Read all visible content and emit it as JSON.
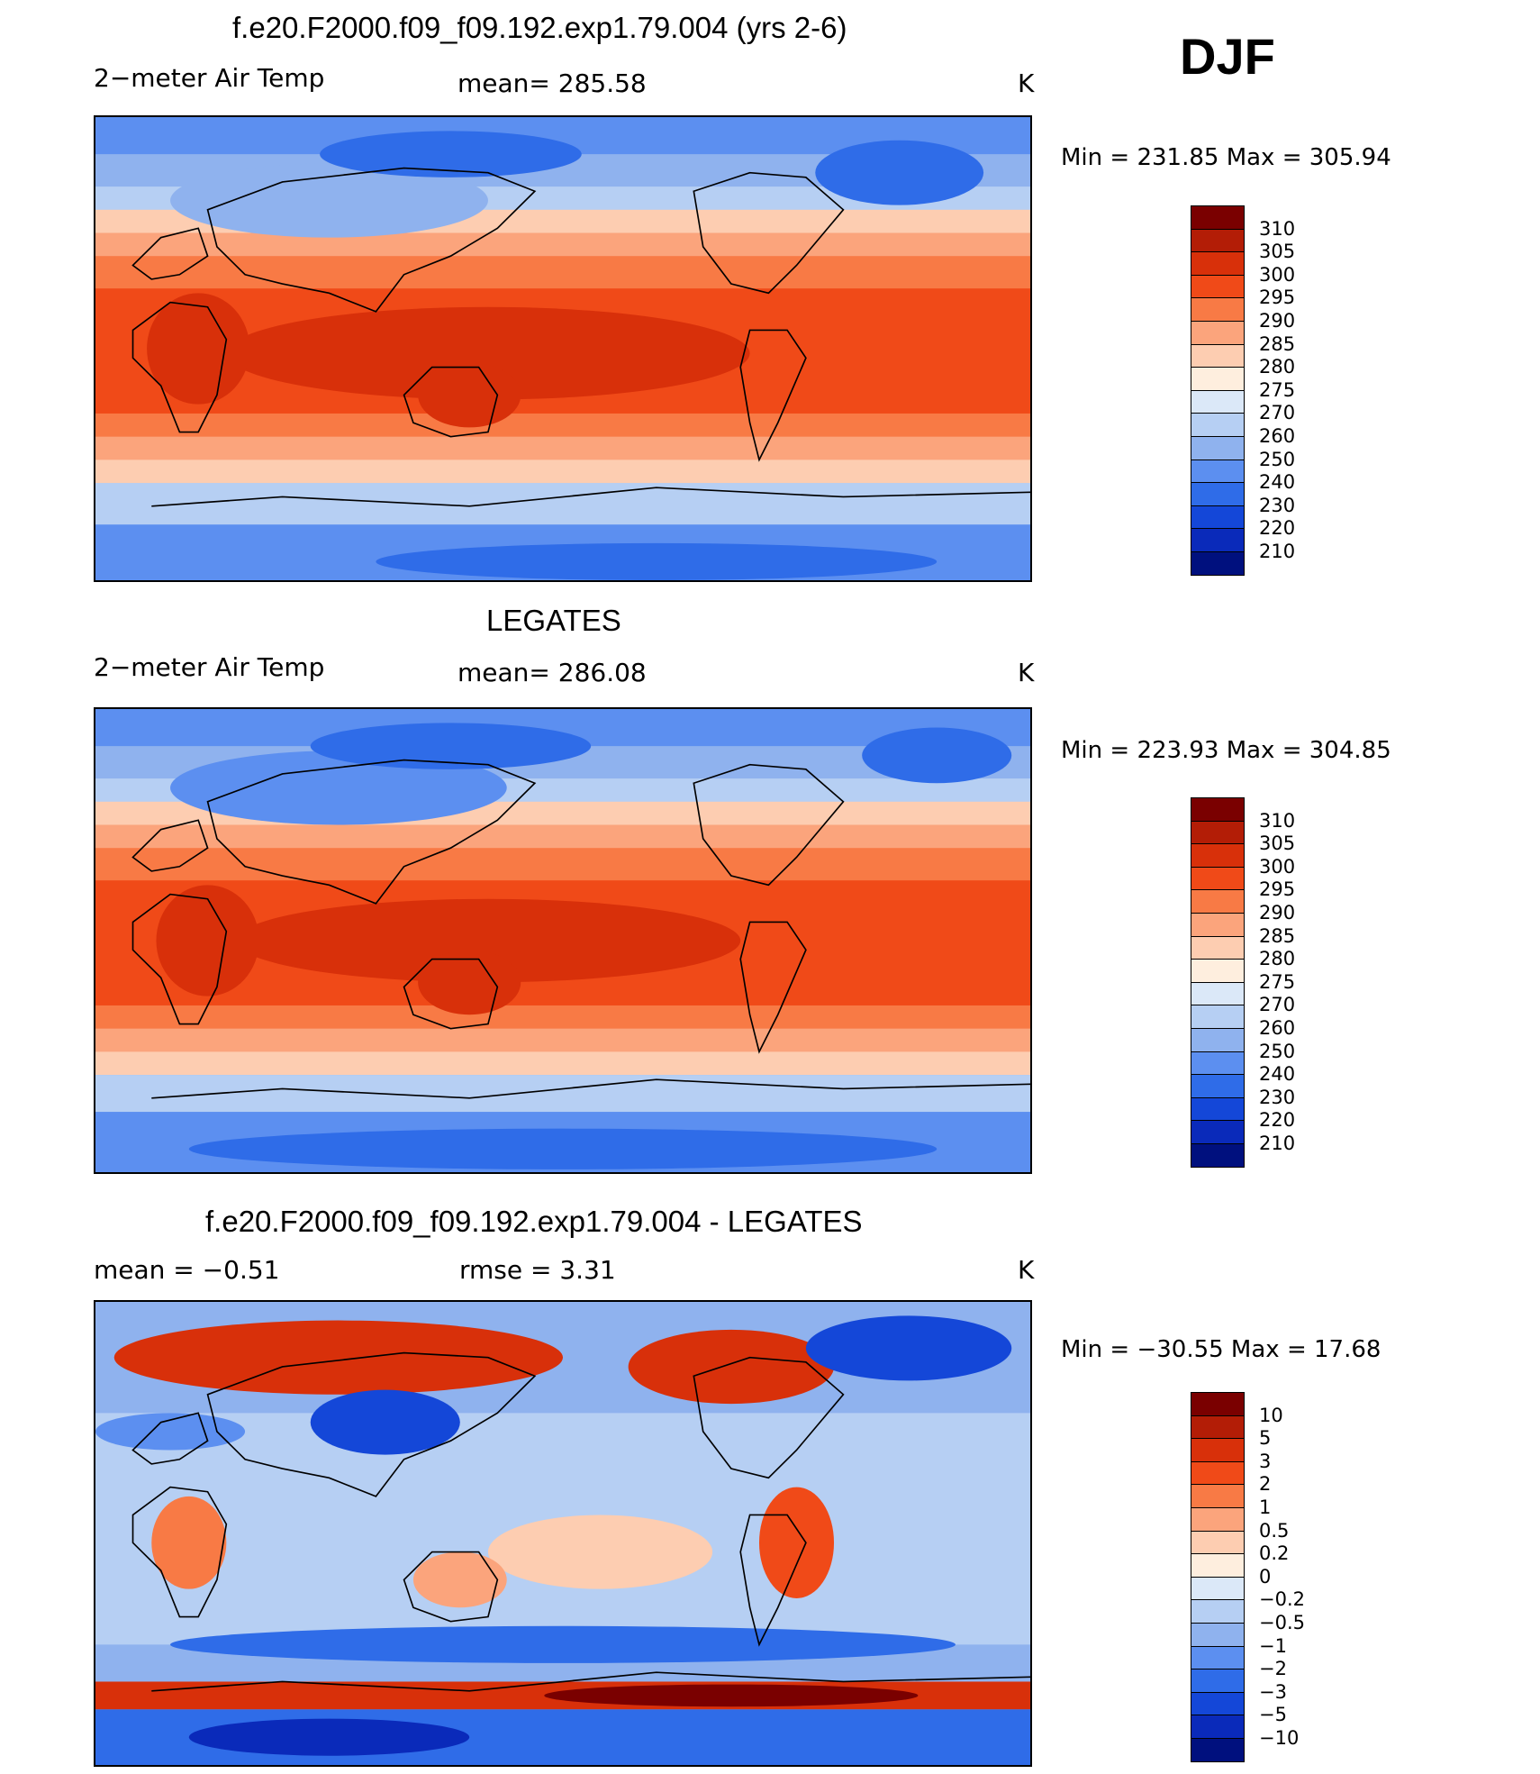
{
  "season": "DJF",
  "units": "K",
  "panels": [
    {
      "title": "f.e20.F2000.f09_f09.192.exp1.79.004 (yrs 2-6)",
      "variable": "2−meter Air Temp",
      "stat1": "mean= 285.58",
      "stat2": "",
      "units": "K",
      "minmax": "Min  =  231.85  Max  =  305.94",
      "colorbar": {
        "labels": [
          "310",
          "305",
          "300",
          "295",
          "290",
          "285",
          "280",
          "275",
          "270",
          "260",
          "250",
          "240",
          "230",
          "220",
          "210"
        ],
        "colors": [
          "#7a0000",
          "#b31d06",
          "#d8300a",
          "#f04a18",
          "#f87a45",
          "#fba47c",
          "#fdcdb1",
          "#feeede",
          "#dbe8f8",
          "#b6cff3",
          "#8fb2ee",
          "#5c8ff0",
          "#2f6ce8",
          "#1447d8",
          "#0a2aba",
          "#00107e"
        ]
      },
      "map_description": "Global surface air temperature field, warm tropics and cold poles"
    },
    {
      "title": "LEGATES",
      "variable": "2−meter Air Temp",
      "stat1": "mean= 286.08",
      "stat2": "",
      "units": "K",
      "minmax": "Min  =  223.93  Max  =  304.85",
      "colorbar": {
        "labels": [
          "310",
          "305",
          "300",
          "295",
          "290",
          "285",
          "280",
          "275",
          "270",
          "260",
          "250",
          "240",
          "230",
          "220",
          "210"
        ],
        "colors": [
          "#7a0000",
          "#b31d06",
          "#d8300a",
          "#f04a18",
          "#f87a45",
          "#fba47c",
          "#fdcdb1",
          "#feeede",
          "#dbe8f8",
          "#b6cff3",
          "#8fb2ee",
          "#5c8ff0",
          "#2f6ce8",
          "#1447d8",
          "#0a2aba",
          "#00107e"
        ]
      },
      "map_description": "Observed global surface air temperature field"
    },
    {
      "title": "f.e20.F2000.f09_f09.192.exp1.79.004 - LEGATES",
      "variable": "mean  =     −0.51",
      "stat1": "rmse  =      3.31",
      "stat2": "",
      "units": "K",
      "minmax": "Min  =  −30.55  Max  =    17.68",
      "colorbar": {
        "labels": [
          "10",
          "5",
          "3",
          "2",
          "1",
          "0.5",
          "0.2",
          "0",
          "−0.2",
          "−0.5",
          "−1",
          "−2",
          "−3",
          "−5",
          "−10"
        ],
        "colors": [
          "#7a0000",
          "#b31d06",
          "#d8300a",
          "#f04a18",
          "#f87a45",
          "#fba47c",
          "#fdcdb1",
          "#feeede",
          "#dbe8f8",
          "#b6cff3",
          "#8fb2ee",
          "#5c8ff0",
          "#2f6ce8",
          "#1447d8",
          "#0a2aba",
          "#00107e"
        ]
      },
      "map_description": "Model minus observation temperature difference field"
    }
  ]
}
